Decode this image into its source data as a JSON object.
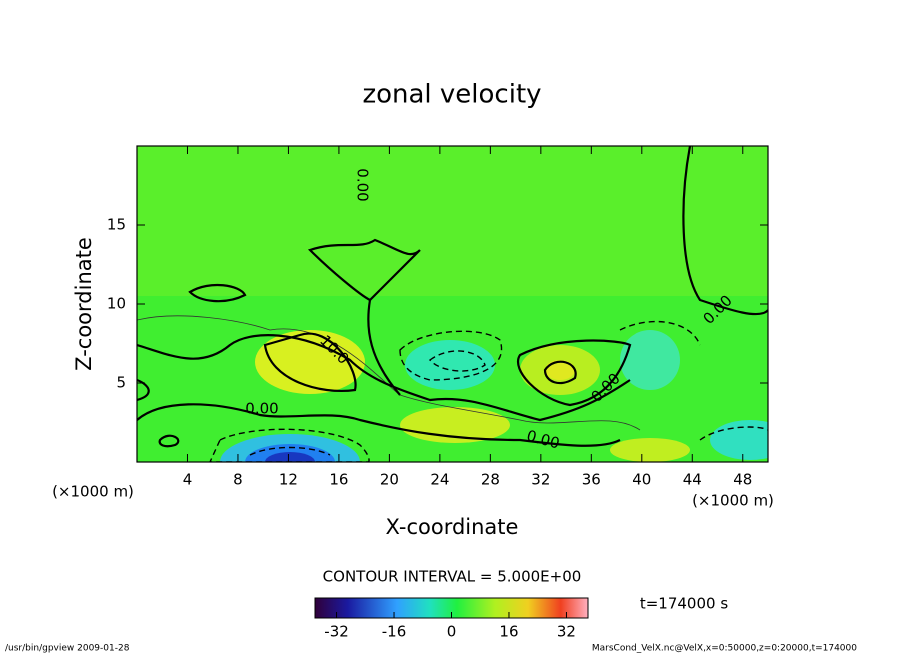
{
  "chart_data": {
    "type": "contour",
    "title": "zonal velocity",
    "x_label": "X-coordinate",
    "y_label": "Z-coordinate",
    "x_unit_label": "(×1000 m)",
    "xlim": [
      0,
      50
    ],
    "xticks": [
      4,
      8,
      12,
      16,
      20,
      24,
      28,
      32,
      36,
      40,
      44,
      48
    ],
    "ylim": [
      0,
      20
    ],
    "yticks": [
      5,
      10,
      15
    ],
    "contour_labels": [
      "0.00",
      "10.0",
      "0.00",
      "0.00",
      "0.00",
      "0.00"
    ],
    "contour_interval_label": "CONTOUR INTERVAL = 5.000E+00",
    "colorbar": {
      "lim": [
        -38,
        38
      ],
      "ticks": [
        -32,
        -16,
        0,
        16,
        32
      ]
    },
    "time_label": "t=174000 s",
    "footer_left": "/usr/bin/gpview  2009-01-28",
    "footer_right": "MarsCond_VelX.nc@VelX,x=0:50000,z=0:20000,t=174000"
  }
}
